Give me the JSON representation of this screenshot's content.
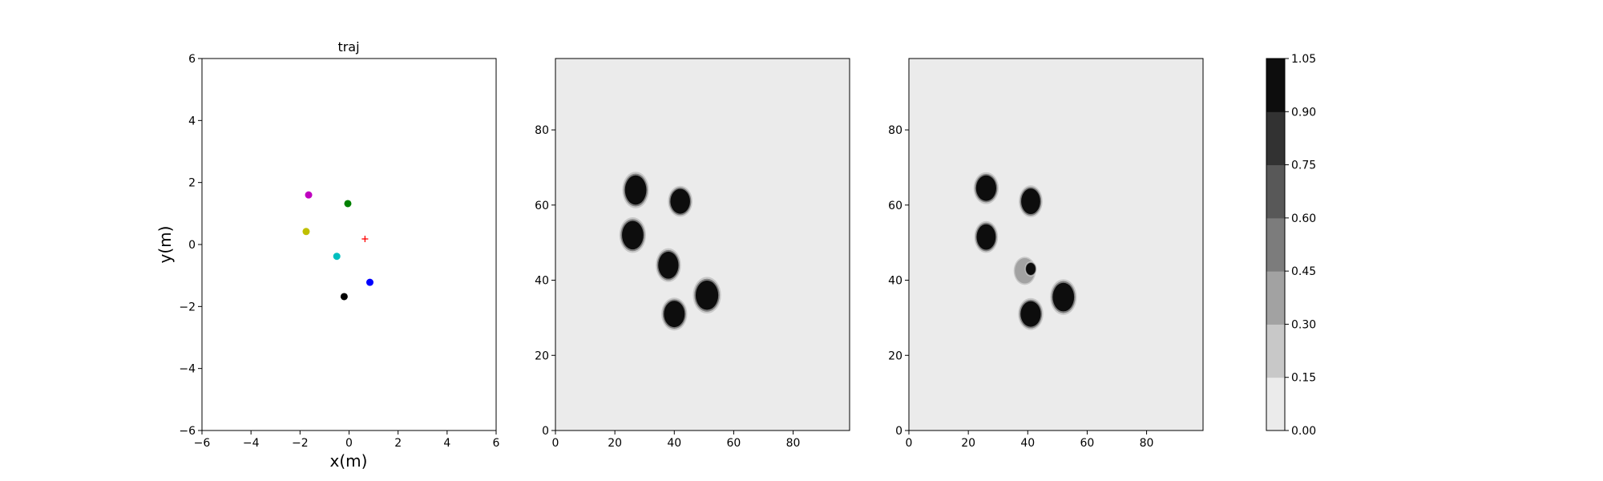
{
  "chart_data": [
    {
      "type": "scatter",
      "title": "traj",
      "xlabel": "x(m)",
      "ylabel": "y(m)",
      "xlim": [
        -6,
        6
      ],
      "ylim": [
        -6,
        6
      ],
      "xticks": [
        -6,
        -4,
        -2,
        0,
        2,
        4,
        6
      ],
      "yticks": [
        -6,
        -4,
        -2,
        0,
        2,
        4,
        6
      ],
      "grid": false,
      "points": [
        {
          "x": -1.65,
          "y": 1.6,
          "color": "#bf00bf",
          "marker": "o"
        },
        {
          "x": -0.05,
          "y": 1.32,
          "color": "#008000",
          "marker": "o"
        },
        {
          "x": -1.75,
          "y": 0.42,
          "color": "#bfbf00",
          "marker": "o"
        },
        {
          "x": -0.5,
          "y": -0.38,
          "color": "#00bfbf",
          "marker": "o"
        },
        {
          "x": 0.85,
          "y": -1.22,
          "color": "#0000ff",
          "marker": "o"
        },
        {
          "x": -0.2,
          "y": -1.68,
          "color": "#000000",
          "marker": "o"
        },
        {
          "x": 0.65,
          "y": 0.18,
          "color": "#ff0000",
          "marker": "+"
        }
      ]
    },
    {
      "type": "heatmap",
      "xlim": [
        0,
        99
      ],
      "ylim": [
        0,
        99
      ],
      "xticks": [
        0,
        20,
        40,
        60,
        80
      ],
      "yticks": [
        0,
        20,
        40,
        60,
        80
      ],
      "background_value": 0.0,
      "blobs": [
        {
          "x": 27,
          "y": 64,
          "rx": 3.6,
          "ry": 3.9,
          "value": 1.0
        },
        {
          "x": 42,
          "y": 61,
          "rx": 3.3,
          "ry": 3.3,
          "value": 1.0
        },
        {
          "x": 26,
          "y": 52,
          "rx": 3.6,
          "ry": 3.8,
          "value": 1.0
        },
        {
          "x": 38,
          "y": 44,
          "rx": 3.4,
          "ry": 3.6,
          "value": 1.0
        },
        {
          "x": 51,
          "y": 36,
          "rx": 3.8,
          "ry": 3.9,
          "value": 1.0
        },
        {
          "x": 40,
          "y": 31,
          "rx": 3.5,
          "ry": 3.5,
          "value": 1.0
        }
      ]
    },
    {
      "type": "heatmap",
      "xlim": [
        0,
        99
      ],
      "ylim": [
        0,
        99
      ],
      "xticks": [
        0,
        20,
        40,
        60,
        80
      ],
      "yticks": [
        0,
        20,
        40,
        60,
        80
      ],
      "background_value": 0.0,
      "blobs": [
        {
          "x": 26,
          "y": 64.5,
          "rx": 3.4,
          "ry": 3.4,
          "value": 1.0
        },
        {
          "x": 41,
          "y": 61,
          "rx": 3.2,
          "ry": 3.4,
          "value": 1.0
        },
        {
          "x": 26,
          "y": 51.5,
          "rx": 3.2,
          "ry": 3.4,
          "value": 1.0
        },
        {
          "x": 39,
          "y": 42.5,
          "rx": 3.0,
          "ry": 3.0,
          "value": 0.3
        },
        {
          "x": 41,
          "y": 43,
          "rx": 1.6,
          "ry": 1.6,
          "value": 1.0
        },
        {
          "x": 41,
          "y": 31,
          "rx": 3.4,
          "ry": 3.4,
          "value": 1.0
        },
        {
          "x": 52,
          "y": 35.5,
          "rx": 3.6,
          "ry": 3.8,
          "value": 1.0
        }
      ]
    }
  ],
  "colorbar": {
    "levels": [
      "0.00",
      "0.15",
      "0.30",
      "0.45",
      "0.60",
      "0.75",
      "0.90",
      "1.05"
    ],
    "colors": [
      "#ebebeb",
      "#c8c8c8",
      "#a2a2a2",
      "#7c7c7c",
      "#585858",
      "#323232",
      "#0d0d0d"
    ]
  }
}
